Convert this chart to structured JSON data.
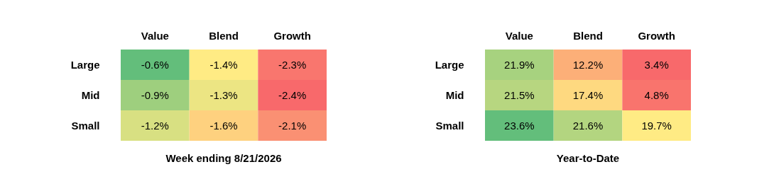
{
  "chart_data": [
    {
      "type": "heatmap",
      "title": "Week ending 8/21/2026",
      "categories": [
        "Value",
        "Blend",
        "Growth"
      ],
      "y_categories": [
        "Large",
        "Mid",
        "Small"
      ],
      "cells": [
        [
          -0.6,
          -1.4,
          -2.3
        ],
        [
          -0.9,
          -1.3,
          -2.4
        ],
        [
          -1.2,
          -1.6,
          -2.1
        ]
      ],
      "cell_labels": [
        [
          "-0.6%",
          "-1.4%",
          "-2.3%"
        ],
        [
          "-0.9%",
          "-1.3%",
          "-2.4%"
        ],
        [
          "-1.2%",
          "-1.6%",
          "-2.1%"
        ]
      ]
    },
    {
      "type": "heatmap",
      "title": "Year-to-Date",
      "categories": [
        "Value",
        "Blend",
        "Growth"
      ],
      "y_categories": [
        "Large",
        "Mid",
        "Small"
      ],
      "cells": [
        [
          21.9,
          12.2,
          3.4
        ],
        [
          21.5,
          17.4,
          4.8
        ],
        [
          23.6,
          21.6,
          19.7
        ]
      ],
      "cell_labels": [
        [
          "21.9%",
          "12.2%",
          "3.4%"
        ],
        [
          "21.5%",
          "17.4%",
          "4.8%"
        ],
        [
          "23.6%",
          "21.6%",
          "19.7%"
        ]
      ]
    }
  ]
}
